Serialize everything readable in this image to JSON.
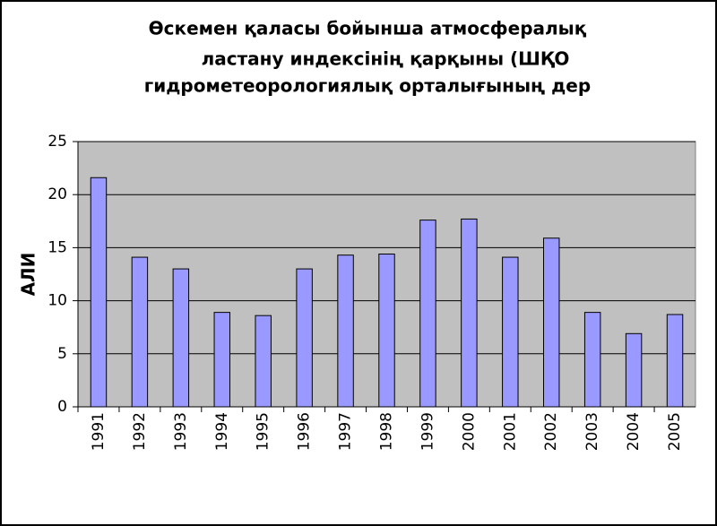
{
  "chart_data": {
    "type": "bar",
    "title": [
      "Өскемен қаласы бойынша атмосфералық",
      "ластану индексінің  қарқыны (ШҚО",
      "гидрометеорологиялық орталығының дер"
    ],
    "y_label": "АЛИ",
    "categories": [
      "1991",
      "1992",
      "1993",
      "1994",
      "1995",
      "1996",
      "1997",
      "1998",
      "1999",
      "2000",
      "2001",
      "2002",
      "2003",
      "2004",
      "2005"
    ],
    "values": [
      21.6,
      14.1,
      13.0,
      8.9,
      8.6,
      13.0,
      14.3,
      14.4,
      17.6,
      17.7,
      14.1,
      15.9,
      8.9,
      6.9,
      8.7
    ],
    "color": "#9999ff",
    "ylim": [
      0,
      25
    ],
    "yticks": [
      0,
      5,
      10,
      15,
      20,
      25
    ],
    "grid": true
  }
}
